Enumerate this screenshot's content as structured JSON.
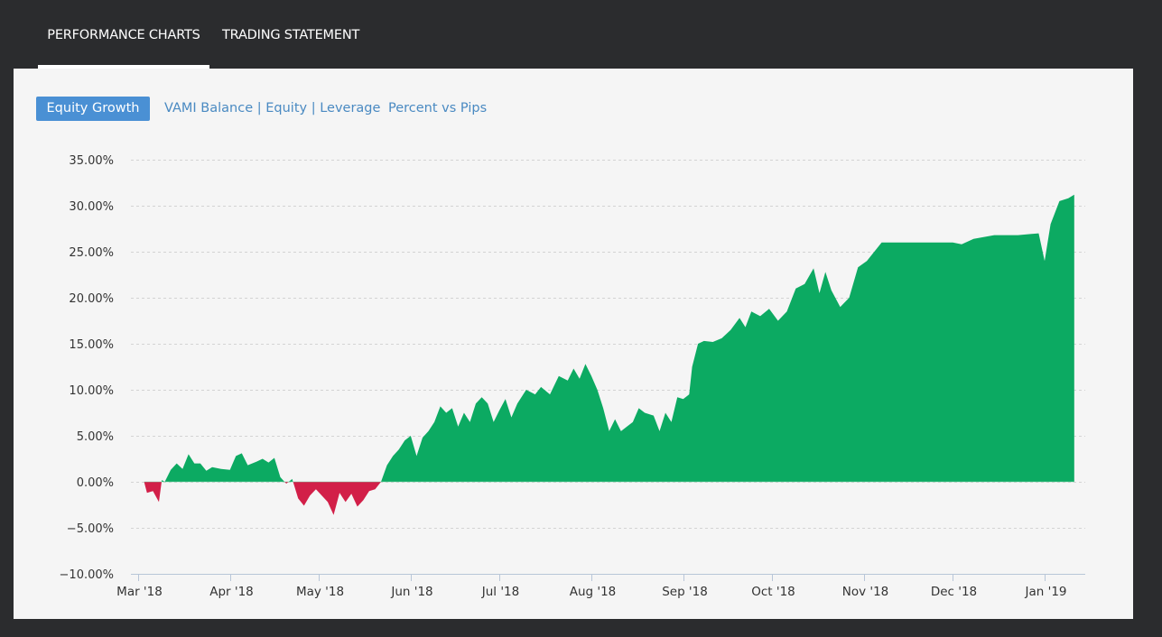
{
  "tabs": [
    {
      "label": "PERFORMANCE CHARTS",
      "active": true
    },
    {
      "label": "TRADING STATEMENT",
      "active": false
    }
  ],
  "subtabs": [
    {
      "label": "Equity Growth",
      "active": true
    },
    {
      "label": "VAMI Balance | Equity | Leverage",
      "active": false
    },
    {
      "label": "Percent vs Pips",
      "active": false
    }
  ],
  "colors": {
    "positive": "#0caa62",
    "negative": "#d21f48",
    "active_subtab": "#4a90d4",
    "link": "#4a8ac2"
  },
  "chart_data": {
    "type": "area",
    "title": "",
    "xlabel": "",
    "ylabel": "",
    "ylim": [
      -10,
      35
    ],
    "y_ticks": [
      35,
      30,
      25,
      20,
      15,
      10,
      5,
      0,
      -5,
      -10
    ],
    "y_tick_labels": [
      "35.00%",
      "30.00%",
      "25.00%",
      "20.00%",
      "15.00%",
      "10.00%",
      "5.00%",
      "0.00%",
      "−5.00%",
      "−10.00%"
    ],
    "x_tick_labels": [
      "Mar '18",
      "Apr '18",
      "May '18",
      "Jun '18",
      "Jul '18",
      "Aug '18",
      "Sep '18",
      "Oct '18",
      "Nov '18",
      "Dec '18",
      "Jan '19"
    ],
    "x_tick_dates": [
      "2018-03-01",
      "2018-04-01",
      "2018-05-01",
      "2018-06-01",
      "2018-07-01",
      "2018-08-01",
      "2018-09-01",
      "2018-10-01",
      "2018-11-01",
      "2018-12-01",
      "2019-01-01"
    ],
    "grid": true,
    "series": [
      {
        "values": [
          [
            "2018-03-03",
            0
          ],
          [
            "2018-03-04",
            -1.2
          ],
          [
            "2018-03-06",
            -1.0
          ],
          [
            "2018-03-08",
            -2.2
          ],
          [
            "2018-03-09",
            0.2
          ],
          [
            "2018-03-10",
            0
          ],
          [
            "2018-03-12",
            1.3
          ],
          [
            "2018-03-14",
            2.0
          ],
          [
            "2018-03-16",
            1.4
          ],
          [
            "2018-03-18",
            3.0
          ],
          [
            "2018-03-20",
            2.0
          ],
          [
            "2018-03-22",
            2.0
          ],
          [
            "2018-03-24",
            1.2
          ],
          [
            "2018-03-26",
            1.6
          ],
          [
            "2018-03-29",
            1.4
          ],
          [
            "2018-04-01",
            1.3
          ],
          [
            "2018-04-03",
            2.8
          ],
          [
            "2018-04-05",
            3.1
          ],
          [
            "2018-04-07",
            1.8
          ],
          [
            "2018-04-10",
            2.2
          ],
          [
            "2018-04-12",
            2.5
          ],
          [
            "2018-04-14",
            2.1
          ],
          [
            "2018-04-16",
            2.6
          ],
          [
            "2018-04-18",
            0.5
          ],
          [
            "2018-04-20",
            -0.2
          ],
          [
            "2018-04-22",
            0.3
          ],
          [
            "2018-04-24",
            -1.8
          ],
          [
            "2018-04-26",
            -2.6
          ],
          [
            "2018-04-28",
            -1.5
          ],
          [
            "2018-04-30",
            -0.8
          ],
          [
            "2018-05-02",
            -1.5
          ],
          [
            "2018-05-04",
            -2.2
          ],
          [
            "2018-05-06",
            -3.6
          ],
          [
            "2018-05-08",
            -1.2
          ],
          [
            "2018-05-10",
            -2.2
          ],
          [
            "2018-05-12",
            -1.3
          ],
          [
            "2018-05-14",
            -2.7
          ],
          [
            "2018-05-16",
            -2.0
          ],
          [
            "2018-05-18",
            -1.0
          ],
          [
            "2018-05-20",
            -0.8
          ],
          [
            "2018-05-22",
            0
          ],
          [
            "2018-05-24",
            1.8
          ],
          [
            "2018-05-26",
            2.8
          ],
          [
            "2018-05-28",
            3.5
          ],
          [
            "2018-05-30",
            4.5
          ],
          [
            "2018-06-01",
            5.0
          ],
          [
            "2018-06-03",
            2.8
          ],
          [
            "2018-06-05",
            4.8
          ],
          [
            "2018-06-07",
            5.5
          ],
          [
            "2018-06-09",
            6.5
          ],
          [
            "2018-06-11",
            8.2
          ],
          [
            "2018-06-13",
            7.5
          ],
          [
            "2018-06-15",
            8.0
          ],
          [
            "2018-06-17",
            6.0
          ],
          [
            "2018-06-19",
            7.5
          ],
          [
            "2018-06-21",
            6.5
          ],
          [
            "2018-06-23",
            8.5
          ],
          [
            "2018-06-25",
            9.2
          ],
          [
            "2018-06-27",
            8.5
          ],
          [
            "2018-06-29",
            6.5
          ],
          [
            "2018-07-01",
            7.8
          ],
          [
            "2018-07-03",
            9.0
          ],
          [
            "2018-07-05",
            7.0
          ],
          [
            "2018-07-07",
            8.5
          ],
          [
            "2018-07-10",
            10.0
          ],
          [
            "2018-07-13",
            9.5
          ],
          [
            "2018-07-15",
            10.3
          ],
          [
            "2018-07-18",
            9.5
          ],
          [
            "2018-07-21",
            11.5
          ],
          [
            "2018-07-24",
            11.0
          ],
          [
            "2018-07-26",
            12.3
          ],
          [
            "2018-07-28",
            11.2
          ],
          [
            "2018-07-30",
            12.8
          ],
          [
            "2018-08-01",
            11.5
          ],
          [
            "2018-08-03",
            10.0
          ],
          [
            "2018-08-05",
            8.0
          ],
          [
            "2018-08-07",
            5.5
          ],
          [
            "2018-08-09",
            6.8
          ],
          [
            "2018-08-11",
            5.5
          ],
          [
            "2018-08-13",
            6.0
          ],
          [
            "2018-08-15",
            6.5
          ],
          [
            "2018-08-17",
            8.0
          ],
          [
            "2018-08-19",
            7.5
          ],
          [
            "2018-08-22",
            7.2
          ],
          [
            "2018-08-24",
            5.5
          ],
          [
            "2018-08-26",
            7.5
          ],
          [
            "2018-08-28",
            6.5
          ],
          [
            "2018-08-30",
            9.2
          ],
          [
            "2018-09-01",
            9.0
          ],
          [
            "2018-09-03",
            9.5
          ],
          [
            "2018-09-04",
            12.5
          ],
          [
            "2018-09-06",
            15.0
          ],
          [
            "2018-09-08",
            15.3
          ],
          [
            "2018-09-11",
            15.2
          ],
          [
            "2018-09-14",
            15.6
          ],
          [
            "2018-09-17",
            16.5
          ],
          [
            "2018-09-20",
            17.8
          ],
          [
            "2018-09-22",
            16.8
          ],
          [
            "2018-09-24",
            18.5
          ],
          [
            "2018-09-27",
            18.0
          ],
          [
            "2018-09-30",
            18.8
          ],
          [
            "2018-10-03",
            17.5
          ],
          [
            "2018-10-06",
            18.5
          ],
          [
            "2018-10-09",
            21.0
          ],
          [
            "2018-10-12",
            21.5
          ],
          [
            "2018-10-15",
            23.2
          ],
          [
            "2018-10-17",
            20.5
          ],
          [
            "2018-10-19",
            22.8
          ],
          [
            "2018-10-21",
            20.8
          ],
          [
            "2018-10-24",
            19.0
          ],
          [
            "2018-10-27",
            20.0
          ],
          [
            "2018-10-30",
            23.3
          ],
          [
            "2018-11-02",
            24.0
          ],
          [
            "2018-11-07",
            26.0
          ],
          [
            "2018-11-20",
            26.0
          ],
          [
            "2018-11-25",
            26.0
          ],
          [
            "2018-12-01",
            26.0
          ],
          [
            "2018-12-04",
            25.8
          ],
          [
            "2018-12-08",
            26.4
          ],
          [
            "2018-12-15",
            26.8
          ],
          [
            "2018-12-23",
            26.8
          ],
          [
            "2018-12-30",
            27.0
          ],
          [
            "2019-01-01",
            24.0
          ],
          [
            "2019-01-03",
            28.0
          ],
          [
            "2019-01-06",
            30.5
          ],
          [
            "2019-01-09",
            30.8
          ],
          [
            "2019-01-11",
            31.2
          ]
        ]
      }
    ]
  }
}
